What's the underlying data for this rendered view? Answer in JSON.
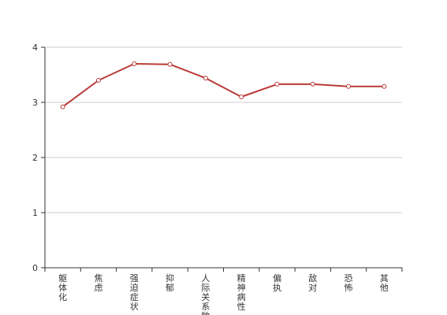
{
  "chart_data": {
    "type": "line",
    "categories": [
      "躯体化",
      "焦虑",
      "强迫症状",
      "抑郁",
      "人际关系敏感",
      "精神病性",
      "偏执",
      "敌对",
      "恐怖",
      "其他"
    ],
    "series": [
      {
        "values": [
          2.92,
          3.4,
          3.7,
          3.69,
          3.44,
          3.1,
          3.33,
          3.33,
          3.29,
          3.29
        ],
        "color": "#b93a36"
      }
    ],
    "title": "",
    "xlabel": "",
    "ylabel": "",
    "ylim": [
      0,
      4
    ],
    "yticks": [
      0,
      1,
      2,
      3,
      4
    ],
    "grid": true,
    "legend": "none",
    "colors": {
      "line": "#b93a36",
      "grid": "#cccccc",
      "axis": "#333333"
    }
  }
}
